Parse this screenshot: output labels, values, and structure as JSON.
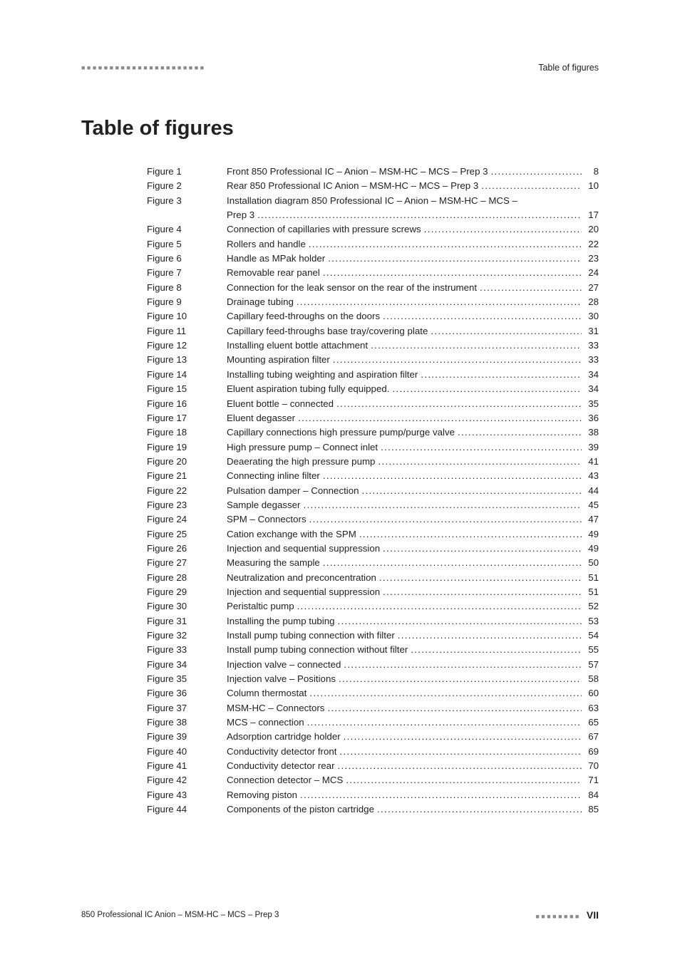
{
  "header": {
    "dashes": "■■■■■■■■■■■■■■■■■■■■■■",
    "title": "Table of figures"
  },
  "main_title": "Table of figures",
  "figures": [
    {
      "label": "Figure 1",
      "text": "Front 850 Professional IC – Anion – MSM-HC – MCS – Prep 3",
      "page": "8",
      "continuation": false
    },
    {
      "label": "Figure 2",
      "text": "Rear 850 Professional IC Anion – MSM-HC – MCS – Prep 3",
      "page": "10",
      "continuation": false
    },
    {
      "label": "Figure 3",
      "text": "Installation diagram 850 Professional IC – Anion – MSM-HC – MCS –",
      "page": "",
      "continuation": true,
      "cont_text": "Prep 3",
      "cont_page": "17"
    },
    {
      "label": "Figure 4",
      "text": "Connection of capillaries with pressure screws",
      "page": "20",
      "continuation": false
    },
    {
      "label": "Figure 5",
      "text": "Rollers and handle",
      "page": "22",
      "continuation": false
    },
    {
      "label": "Figure 6",
      "text": "Handle as MPak holder",
      "page": "23",
      "continuation": false
    },
    {
      "label": "Figure 7",
      "text": "Removable rear panel",
      "page": "24",
      "continuation": false
    },
    {
      "label": "Figure 8",
      "text": "Connection for the leak sensor on the rear of the instrument",
      "page": "27",
      "continuation": false
    },
    {
      "label": "Figure 9",
      "text": "Drainage tubing",
      "page": "28",
      "continuation": false
    },
    {
      "label": "Figure 10",
      "text": "Capillary feed-throughs on the doors",
      "page": "30",
      "continuation": false
    },
    {
      "label": "Figure 11",
      "text": "Capillary feed-throughs base tray/covering plate",
      "page": "31",
      "continuation": false
    },
    {
      "label": "Figure 12",
      "text": "Installing eluent bottle attachment",
      "page": "33",
      "continuation": false
    },
    {
      "label": "Figure 13",
      "text": "Mounting aspiration filter",
      "page": "33",
      "continuation": false
    },
    {
      "label": "Figure 14",
      "text": "Installing tubing weighting and aspiration filter",
      "page": "34",
      "continuation": false
    },
    {
      "label": "Figure 15",
      "text": "Eluent aspiration tubing fully equipped.",
      "page": "34",
      "continuation": false
    },
    {
      "label": "Figure 16",
      "text": "Eluent bottle – connected",
      "page": "35",
      "continuation": false
    },
    {
      "label": "Figure 17",
      "text": "Eluent degasser",
      "page": "36",
      "continuation": false
    },
    {
      "label": "Figure 18",
      "text": "Capillary connections high pressure pump/purge valve",
      "page": "38",
      "continuation": false
    },
    {
      "label": "Figure 19",
      "text": "High pressure pump – Connect inlet",
      "page": "39",
      "continuation": false
    },
    {
      "label": "Figure 20",
      "text": "Deaerating the high pressure pump",
      "page": "41",
      "continuation": false
    },
    {
      "label": "Figure 21",
      "text": "Connecting inline filter",
      "page": "43",
      "continuation": false
    },
    {
      "label": "Figure 22",
      "text": "Pulsation damper – Connection",
      "page": "44",
      "continuation": false
    },
    {
      "label": "Figure 23",
      "text": "Sample degasser",
      "page": "45",
      "continuation": false
    },
    {
      "label": "Figure 24",
      "text": "SPM – Connectors",
      "page": "47",
      "continuation": false
    },
    {
      "label": "Figure 25",
      "text": "Cation exchange with the SPM",
      "page": "49",
      "continuation": false
    },
    {
      "label": "Figure 26",
      "text": "Injection and sequential suppression",
      "page": "49",
      "continuation": false
    },
    {
      "label": "Figure 27",
      "text": "Measuring the sample",
      "page": "50",
      "continuation": false
    },
    {
      "label": "Figure 28",
      "text": "Neutralization and preconcentration",
      "page": "51",
      "continuation": false
    },
    {
      "label": "Figure 29",
      "text": "Injection and sequential suppression",
      "page": "51",
      "continuation": false
    },
    {
      "label": "Figure 30",
      "text": "Peristaltic pump",
      "page": "52",
      "continuation": false
    },
    {
      "label": "Figure 31",
      "text": "Installing the pump tubing",
      "page": "53",
      "continuation": false
    },
    {
      "label": "Figure 32",
      "text": "Install pump tubing connection with filter",
      "page": "54",
      "continuation": false
    },
    {
      "label": "Figure 33",
      "text": "Install pump tubing connection without filter",
      "page": "55",
      "continuation": false
    },
    {
      "label": "Figure 34",
      "text": "Injection valve – connected",
      "page": "57",
      "continuation": false
    },
    {
      "label": "Figure 35",
      "text": "Injection valve – Positions",
      "page": "58",
      "continuation": false
    },
    {
      "label": "Figure 36",
      "text": "Column thermostat",
      "page": "60",
      "continuation": false
    },
    {
      "label": "Figure 37",
      "text": "MSM-HC – Connectors",
      "page": "63",
      "continuation": false
    },
    {
      "label": "Figure 38",
      "text": "MCS – connection",
      "page": "65",
      "continuation": false
    },
    {
      "label": "Figure 39",
      "text": "Adsorption cartridge holder",
      "page": "67",
      "continuation": false
    },
    {
      "label": "Figure 40",
      "text": "Conductivity detector front",
      "page": "69",
      "continuation": false
    },
    {
      "label": "Figure 41",
      "text": "Conductivity detector rear",
      "page": "70",
      "continuation": false
    },
    {
      "label": "Figure 42",
      "text": "Connection detector – MCS",
      "page": "71",
      "continuation": false
    },
    {
      "label": "Figure 43",
      "text": "Removing piston",
      "page": "84",
      "continuation": false
    },
    {
      "label": "Figure 44",
      "text": "Components of the piston cartridge",
      "page": "85",
      "continuation": false
    }
  ],
  "footer": {
    "left": "850 Professional IC Anion – MSM-HC – MCS – Prep 3",
    "dashes": "■■■■■■■■",
    "pagenum": "VII"
  },
  "style": {
    "page_bg": "#ffffff",
    "text_color": "#222222",
    "dash_color": "#8a8a8a",
    "title_fontsize": 29,
    "body_fontsize": 13.3,
    "line_height": 1.53,
    "footer_fontsize": 11.5
  }
}
